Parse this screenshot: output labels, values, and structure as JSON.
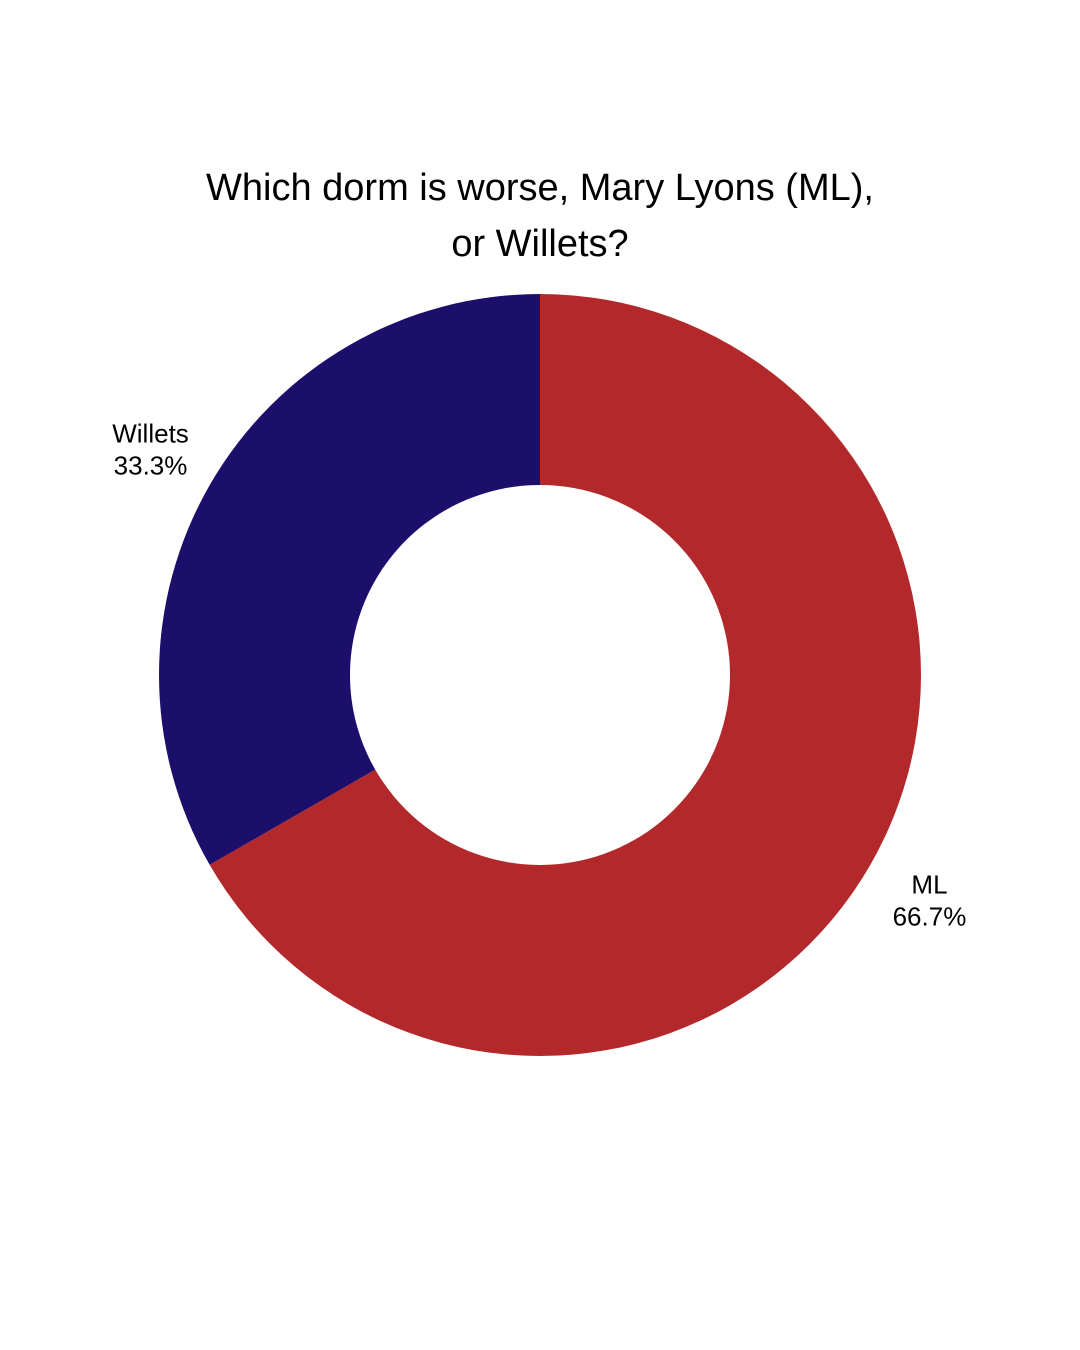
{
  "chart_data": {
    "type": "donut",
    "title": "Which dorm is worse, Mary Lyons (ML), or Willets?",
    "categories": [
      "ML",
      "Willets"
    ],
    "values": [
      66.7,
      33.3
    ],
    "value_labels": [
      "66.7%",
      "33.3%"
    ],
    "colors": [
      "#b3292b",
      "#1c0f6b"
    ]
  }
}
